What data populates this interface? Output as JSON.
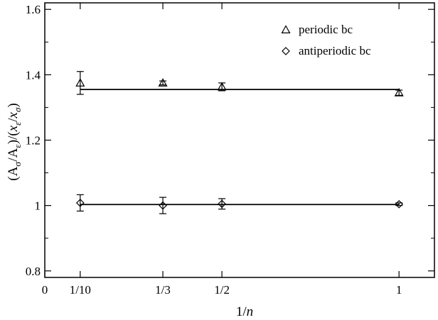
{
  "chart_data": {
    "type": "scatter",
    "title": "",
    "xlabel_main": "1/",
    "xlabel_italic": "n",
    "ylabel": "(A_σ/A_ε)/(x_ε/x_σ)",
    "xlim": [
      0,
      1.1
    ],
    "ylim": [
      0.78,
      1.62
    ],
    "x_ticks": [
      {
        "value": 0,
        "label": "0"
      },
      {
        "value": 0.1,
        "label": "1/10"
      },
      {
        "value": 0.3333,
        "label": "1/3"
      },
      {
        "value": 0.5,
        "label": "1/2"
      },
      {
        "value": 1,
        "label": "1"
      }
    ],
    "y_ticks": [
      {
        "value": 0.8,
        "label": "0.8"
      },
      {
        "value": 1.0,
        "label": "1"
      },
      {
        "value": 1.2,
        "label": "1.2"
      },
      {
        "value": 1.4,
        "label": "1.4"
      },
      {
        "value": 1.6,
        "label": "1.6"
      }
    ],
    "legend_position": "top-right",
    "series": [
      {
        "name": "periodic bc",
        "marker": "triangle",
        "x": [
          0.1,
          0.3333,
          0.5,
          1.0
        ],
        "y": [
          1.375,
          1.375,
          1.363,
          1.345
        ],
        "err": [
          0.035,
          0.006,
          0.012,
          0.008
        ],
        "fit": 1.355
      },
      {
        "name": "antiperiodic bc",
        "marker": "diamond",
        "x": [
          0.1,
          0.3333,
          0.5,
          1.0
        ],
        "y": [
          1.008,
          1.0,
          1.005,
          1.004
        ],
        "err": [
          0.025,
          0.025,
          0.016,
          0.004
        ],
        "fit": 1.003
      }
    ]
  }
}
